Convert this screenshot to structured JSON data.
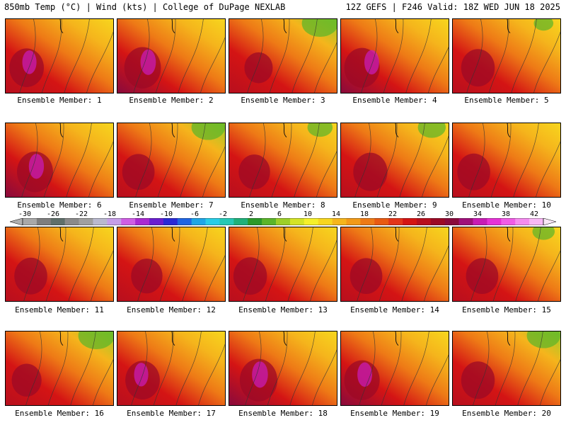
{
  "header": {
    "left": "850mb Temp (°C) | Wind (kts) | College of DuPage NEXLAB",
    "right": "12Z GEFS | F246 Valid: 18Z WED JUN 18 2025"
  },
  "colorbar": {
    "tick_labels": [
      "-30",
      "-26",
      "-22",
      "-18",
      "-14",
      "-10",
      "-6",
      "-2",
      "2",
      "6",
      "10",
      "14",
      "18",
      "22",
      "26",
      "30",
      "34",
      "38",
      "42"
    ],
    "colors": [
      "#a8a8a8",
      "#7e7e7e",
      "#5f6f6a",
      "#8a8a8a",
      "#a0a0a0",
      "#b9b9cf",
      "#c59ee8",
      "#cf5ee3",
      "#aa2ad2",
      "#6a1ed0",
      "#2a2ad6",
      "#1f66e4",
      "#1ea6e6",
      "#28cde6",
      "#26c8b5",
      "#1fb07a",
      "#2a9a2a",
      "#5ab52a",
      "#9ccf28",
      "#d4e326",
      "#f5f02a",
      "#f7d61e",
      "#f5b51c",
      "#f29a18",
      "#ee7a16",
      "#e85a12",
      "#e2341a",
      "#d41414",
      "#b80f1e",
      "#9c0a26",
      "#8a0a3c",
      "#a0107a",
      "#c81cb4",
      "#e632d6",
      "#f05ce6",
      "#f58cf0",
      "#f8b8f6"
    ]
  },
  "members": [
    {
      "label": "Ensemble Member: 1",
      "hot": 0.85,
      "cool": 0.0
    },
    {
      "label": "Ensemble Member: 2",
      "hot": 0.92,
      "cool": 0.0
    },
    {
      "label": "Ensemble Member: 3",
      "hot": 0.65,
      "cool": 0.45
    },
    {
      "label": "Ensemble Member: 4",
      "hot": 0.88,
      "cool": 0.0
    },
    {
      "label": "Ensemble Member: 5",
      "hot": 0.82,
      "cool": 0.15
    },
    {
      "label": "Ensemble Member: 6",
      "hot": 0.9,
      "cool": 0.0
    },
    {
      "label": "Ensemble Member: 7",
      "hot": 0.78,
      "cool": 0.4
    },
    {
      "label": "Ensemble Member: 8",
      "hot": 0.75,
      "cool": 0.25
    },
    {
      "label": "Ensemble Member: 9",
      "hot": 0.84,
      "cool": 0.3
    },
    {
      "label": "Ensemble Member: 10",
      "hot": 0.8,
      "cool": 0.05
    },
    {
      "label": "Ensemble Member: 11",
      "hot": 0.8,
      "cool": 0.0
    },
    {
      "label": "Ensemble Member: 12",
      "hot": 0.75,
      "cool": 0.1
    },
    {
      "label": "Ensemble Member: 13",
      "hot": 0.82,
      "cool": 0.1
    },
    {
      "label": "Ensemble Member: 14",
      "hot": 0.78,
      "cool": 0.0
    },
    {
      "label": "Ensemble Member: 15",
      "hot": 0.78,
      "cool": 0.2
    },
    {
      "label": "Ensemble Member: 16",
      "hot": 0.7,
      "cool": 0.45
    },
    {
      "label": "Ensemble Member: 17",
      "hot": 0.85,
      "cool": 0.1
    },
    {
      "label": "Ensemble Member: 18",
      "hot": 0.95,
      "cool": 0.0
    },
    {
      "label": "Ensemble Member: 19",
      "hot": 0.88,
      "cool": 0.0
    },
    {
      "label": "Ensemble Member: 20",
      "hot": 0.82,
      "cool": 0.4
    }
  ]
}
